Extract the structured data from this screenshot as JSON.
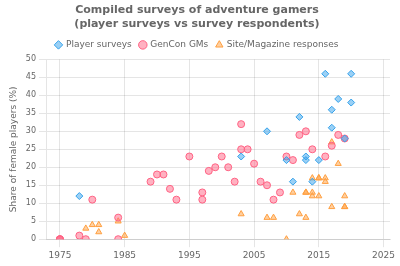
{
  "chart_data": {
    "type": "scatter",
    "title": "Compiled surveys of adventure gamers\n(player surveys vs survey respondents)",
    "ylabel": "Share of female players (%)",
    "xlim": [
      1973,
      2026
    ],
    "ylim": [
      0,
      50
    ],
    "xticks": [
      1975,
      1985,
      1995,
      2005,
      2015,
      2025
    ],
    "yticks": [
      0,
      5,
      10,
      15,
      20,
      25,
      30,
      35,
      40,
      45,
      50
    ],
    "grid": true,
    "legend": "top",
    "series": [
      {
        "name": "Player surveys",
        "marker": "diamond",
        "x": [
          1978,
          2003,
          2007,
          2010,
          2011,
          2012,
          2013,
          2013,
          2014,
          2015,
          2016,
          2017,
          2017,
          2018,
          2019,
          2020,
          2020
        ],
        "values": [
          12,
          23,
          30,
          22,
          16,
          34,
          23,
          22,
          16,
          22,
          46,
          36,
          31,
          39,
          28,
          38,
          46
        ]
      },
      {
        "name": "GenCon GMs",
        "marker": "circle",
        "x": [
          1975,
          1975,
          1975,
          1978,
          1979,
          1980,
          1984,
          1984,
          1989,
          1990,
          1991,
          1992,
          1993,
          1995,
          1997,
          1997,
          1998,
          1999,
          2000,
          2001,
          2002,
          2003,
          2003,
          2004,
          2005,
          2006,
          2007,
          2008,
          2009,
          2010,
          2011,
          2012,
          2013,
          2014,
          2016,
          2017,
          2018,
          2019
        ],
        "values": [
          0,
          0,
          0,
          1,
          0,
          11,
          6,
          0,
          16,
          18,
          18,
          14,
          11,
          23,
          13,
          11,
          19,
          20,
          23,
          20,
          16,
          25,
          32,
          25,
          21,
          16,
          15,
          11,
          13,
          23,
          22,
          29,
          30,
          25,
          23,
          26,
          29,
          28
        ]
      },
      {
        "name": "Site/Magazine responses",
        "marker": "triangle",
        "x": [
          1979,
          1980,
          1981,
          1981,
          1984,
          1985,
          2003,
          2007,
          2008,
          2010,
          2011,
          2012,
          2013,
          2013,
          2013,
          2014,
          2014,
          2014,
          2015,
          2015,
          2015,
          2016,
          2016,
          2017,
          2017,
          2018,
          2019,
          2019,
          2019
        ],
        "values": [
          3,
          4,
          4,
          2,
          5,
          1,
          7,
          6,
          6,
          0,
          13,
          7,
          13,
          13,
          6,
          13,
          17,
          12,
          12,
          17,
          17,
          16,
          17,
          27,
          9,
          21,
          9,
          9,
          12
        ]
      }
    ]
  }
}
